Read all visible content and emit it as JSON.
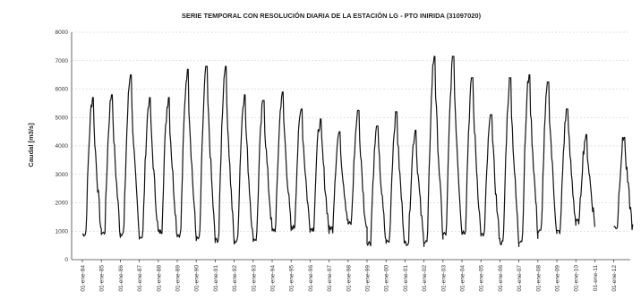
{
  "chart_data": {
    "type": "line",
    "title": "SERIE TEMPORAL CON RESOLUCIÓN DIARIA DE LA ESTACIÓN LG - PTO INIRIDA (31097020)",
    "ylabel": "Caudal [m3/s]",
    "xlabel": "",
    "ylim": [
      0,
      8000
    ],
    "yticks": [
      0,
      1000,
      2000,
      3000,
      4000,
      5000,
      6000,
      7000,
      8000
    ],
    "grid": true,
    "categories": [
      "01-ene-84",
      "01-ene-85",
      "01-ene-86",
      "01-ene-87",
      "01-ene-88",
      "01-ene-89",
      "01-ene-90",
      "01-ene-91",
      "01-ene-92",
      "01-ene-93",
      "01-ene-94",
      "01-ene-95",
      "01-ene-96",
      "01-ene-97",
      "01-ene-98",
      "01-ene-99",
      "01-ene-00",
      "01-ene-01",
      "01-ene-02",
      "01-ene-03",
      "01-ene-04",
      "01-ene-05",
      "01-ene-06",
      "01-ene-07",
      "01-ene-08",
      "01-ene-09",
      "01-ene-10",
      "01-ene-11",
      "01-ene-12"
    ],
    "series": [
      {
        "color": "#111111",
        "annual_peaks": [
          5700,
          5800,
          6500,
          5700,
          5700,
          6700,
          6800,
          6800,
          5800,
          5600,
          5900,
          5300,
          4950,
          4500,
          5250,
          4700,
          5200,
          4550,
          7150,
          7150,
          6400,
          5100,
          6400,
          6500,
          6250,
          5300,
          4400,
          0,
          4300
        ],
        "annual_lows": [
          800,
          850,
          850,
          700,
          900,
          800,
          650,
          600,
          550,
          600,
          950,
          1050,
          1000,
          1000,
          1250,
          500,
          550,
          500,
          500,
          800,
          900,
          800,
          500,
          550,
          900,
          850,
          1250,
          0,
          1050
        ]
      }
    ]
  }
}
